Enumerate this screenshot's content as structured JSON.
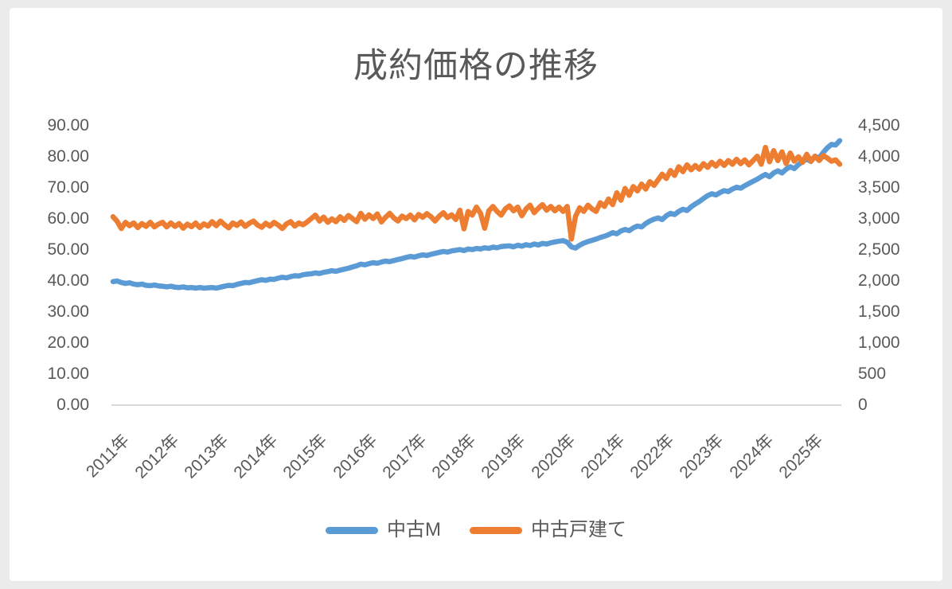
{
  "chart": {
    "title": "成約価格の推移",
    "legend": [
      {
        "label": "中古M",
        "color": "#5B9BD5"
      },
      {
        "label": "中古戸建て",
        "color": "#ED7D31"
      }
    ],
    "left_axis_ticks": [
      "90.00",
      "80.00",
      "70.00",
      "60.00",
      "50.00",
      "40.00",
      "30.00",
      "20.00",
      "10.00",
      "0.00"
    ],
    "right_axis_ticks": [
      "4,500",
      "4,000",
      "3,500",
      "3,000",
      "2,500",
      "2,000",
      "1,500",
      "1,000",
      "500",
      "0"
    ],
    "x_axis_labels": [
      "2011年",
      "2012年",
      "2013年",
      "2014年",
      "2015年",
      "2016年",
      "2017年",
      "2018年",
      "2019年",
      "2020年",
      "2021年",
      "2022年",
      "2023年",
      "2024年",
      "2025年"
    ],
    "colors": {
      "axis_text": "#595959",
      "axis_line": "#D9D9D9",
      "background": "#FFFFFF",
      "frame": "#EBEBEB"
    }
  },
  "chart_data": {
    "type": "line",
    "title": "成約価格の推移",
    "x_tick_labels": [
      "2011年",
      "2012年",
      "2013年",
      "2014年",
      "2015年",
      "2016年",
      "2017年",
      "2018年",
      "2019年",
      "2020年",
      "2021年",
      "2022年",
      "2023年",
      "2024年",
      "2025年"
    ],
    "points_per_year": 12,
    "grid": false,
    "legend_position": "bottom",
    "left_axis": {
      "min": 0,
      "max": 90,
      "step": 10,
      "series": "中古M"
    },
    "right_axis": {
      "min": 0,
      "max": 4500,
      "step": 500,
      "series": "中古戸建て"
    },
    "series": [
      {
        "name": "中古M",
        "axis": "left",
        "color": "#5B9BD5",
        "values": [
          39.8,
          40.0,
          39.5,
          39.2,
          39.4,
          39.0,
          38.8,
          39.0,
          38.6,
          38.5,
          38.7,
          38.4,
          38.3,
          38.1,
          38.3,
          38.0,
          37.9,
          38.1,
          37.8,
          37.9,
          37.7,
          37.9,
          37.7,
          37.8,
          37.9,
          37.7,
          38.0,
          38.3,
          38.6,
          38.5,
          38.9,
          39.2,
          39.5,
          39.4,
          39.8,
          40.1,
          40.4,
          40.2,
          40.6,
          40.5,
          40.9,
          41.2,
          41.0,
          41.4,
          41.7,
          41.6,
          42.0,
          42.2,
          42.3,
          42.6,
          42.4,
          42.8,
          43.0,
          43.3,
          43.1,
          43.5,
          43.8,
          44.1,
          44.5,
          44.9,
          45.4,
          45.2,
          45.6,
          45.9,
          45.7,
          46.1,
          46.4,
          46.2,
          46.6,
          46.9,
          47.2,
          47.6,
          47.9,
          47.7,
          48.1,
          48.4,
          48.2,
          48.6,
          48.9,
          49.2,
          49.5,
          49.3,
          49.7,
          49.9,
          50.1,
          49.8,
          50.3,
          50.1,
          50.5,
          50.3,
          50.7,
          50.5,
          50.9,
          50.7,
          51.1,
          51.2,
          51.3,
          51.0,
          51.5,
          51.2,
          51.7,
          51.4,
          51.9,
          51.6,
          52.1,
          51.9,
          52.3,
          52.6,
          52.8,
          53.0,
          52.5,
          51.0,
          50.6,
          51.5,
          52.2,
          52.7,
          53.1,
          53.5,
          54.0,
          54.4,
          54.9,
          55.6,
          55.2,
          56.1,
          56.6,
          56.2,
          57.1,
          57.7,
          57.4,
          58.5,
          59.3,
          59.9,
          60.3,
          59.8,
          61.0,
          61.8,
          61.4,
          62.4,
          63.1,
          62.7,
          63.9,
          64.8,
          65.6,
          66.6,
          67.5,
          68.1,
          67.7,
          68.5,
          69.1,
          68.8,
          69.6,
          70.2,
          69.9,
          70.7,
          71.4,
          72.1,
          72.8,
          73.6,
          74.3,
          73.6,
          74.8,
          75.5,
          74.8,
          76.0,
          76.8,
          76.2,
          77.5,
          78.5,
          79.3,
          78.5,
          80.2,
          79.6,
          81.4,
          82.9,
          84.0,
          83.8,
          85.2
        ]
      },
      {
        "name": "中古戸建て",
        "axis": "right",
        "color": "#ED7D31",
        "values": [
          3035,
          2960,
          2845,
          2945,
          2890,
          2935,
          2860,
          2925,
          2880,
          2945,
          2870,
          2915,
          2945,
          2870,
          2935,
          2880,
          2925,
          2850,
          2915,
          2875,
          2935,
          2860,
          2920,
          2885,
          2955,
          2890,
          2965,
          2905,
          2855,
          2935,
          2895,
          2950,
          2880,
          2930,
          2965,
          2900,
          2865,
          2930,
          2885,
          2945,
          2900,
          2845,
          2920,
          2955,
          2885,
          2935,
          2905,
          2950,
          3005,
          3060,
          2965,
          3030,
          2945,
          3000,
          2955,
          3035,
          2975,
          3055,
          3005,
          2955,
          3090,
          2995,
          3065,
          3005,
          3080,
          2950,
          3025,
          3090,
          3015,
          2965,
          3045,
          3005,
          3060,
          2985,
          3070,
          3025,
          3085,
          3035,
          2965,
          3045,
          3100,
          3020,
          3065,
          2990,
          3140,
          2840,
          3120,
          3060,
          3190,
          3090,
          2850,
          3130,
          3200,
          3120,
          3060,
          3160,
          3210,
          3130,
          3190,
          3050,
          3160,
          3220,
          3100,
          3170,
          3230,
          3140,
          3200,
          3130,
          3190,
          3120,
          3200,
          2675,
          3040,
          3180,
          3120,
          3220,
          3160,
          3120,
          3260,
          3200,
          3320,
          3230,
          3420,
          3300,
          3490,
          3380,
          3520,
          3450,
          3560,
          3480,
          3600,
          3540,
          3630,
          3720,
          3650,
          3780,
          3700,
          3840,
          3760,
          3870,
          3790,
          3860,
          3800,
          3890,
          3830,
          3910,
          3850,
          3930,
          3860,
          3940,
          3880,
          3960,
          3890,
          3950,
          3870,
          3940,
          4010,
          3880,
          4150,
          3920,
          4100,
          3940,
          4080,
          3890,
          4060,
          3930,
          4000,
          3910,
          4040,
          3930,
          4010,
          3940,
          4020,
          3980,
          3930,
          3950,
          3880
        ]
      }
    ]
  }
}
